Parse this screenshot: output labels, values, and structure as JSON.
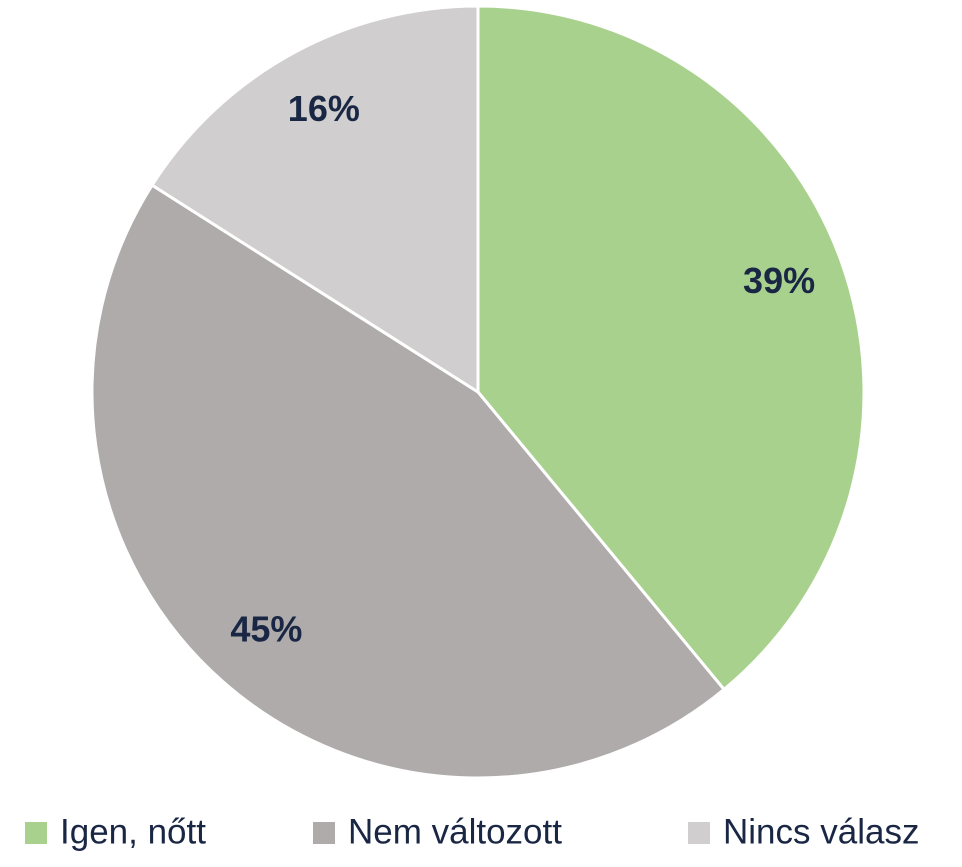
{
  "chart_data": {
    "type": "pie",
    "categories": [
      "Igen, nőtt",
      "Nem változott",
      "Nincs válasz"
    ],
    "values": [
      39,
      45,
      16
    ],
    "value_labels": [
      "39%",
      "45%",
      "16%"
    ],
    "colors": [
      "#a9d18e",
      "#afabab",
      "#d0cece"
    ],
    "legend": "bottom"
  }
}
